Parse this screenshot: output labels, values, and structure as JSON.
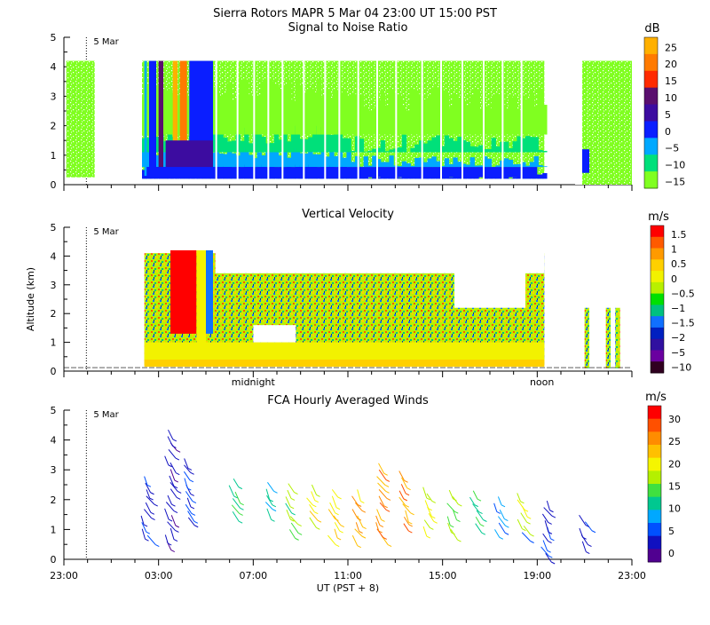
{
  "header": {
    "line1": "Sierra Rotors   MAPR   5 Mar 04   23:00 UT   15:00   PST"
  },
  "chart_data": [
    {
      "type": "heatmap",
      "title": "Signal to Noise Ratio",
      "date_label": "5 Mar",
      "y_ticks": [
        "0",
        "1",
        "2",
        "3",
        "4",
        "5"
      ],
      "ylim": [
        0,
        5
      ],
      "x_range_hours": [
        0,
        24
      ],
      "colorbar": {
        "unit": "dB",
        "labels": [
          "25",
          "20",
          "15",
          "10",
          "5",
          "0",
          "−5",
          "−10",
          "−15"
        ],
        "colors": [
          "#ffb000",
          "#ff7a00",
          "#ff2a00",
          "#5a0f6e",
          "#3c0ca0",
          "#0a1eff",
          "#00a8ff",
          "#00e07a",
          "#80ff20"
        ]
      }
    },
    {
      "type": "heatmap",
      "title": "Vertical Velocity",
      "ylabel": "Altitude (km)",
      "date_label": "5 Mar",
      "y_ticks": [
        "0",
        "1",
        "2",
        "3",
        "4",
        "5"
      ],
      "ylim": [
        0,
        5
      ],
      "x_annotations": [
        "midnight",
        "noon"
      ],
      "colorbar": {
        "unit": "m/s",
        "labels": [
          "1.5",
          "1",
          "0.5",
          "0",
          "−0.5",
          "−1",
          "−1.5",
          "−2",
          "−5",
          "−10"
        ],
        "colors": [
          "#ff0000",
          "#ff5a00",
          "#ff9a00",
          "#ffd000",
          "#f2f200",
          "#b8f000",
          "#00e000",
          "#00c080",
          "#1070ff",
          "#0020c0",
          "#3010a0",
          "#6a00a0",
          "#300020"
        ]
      }
    },
    {
      "type": "scatter",
      "title": "FCA Hourly Averaged Winds",
      "date_label": "5 Mar",
      "xlabel": "UT  (PST + 8)",
      "x_ticks": [
        "23:00",
        "03:00",
        "07:00",
        "11:00",
        "15:00",
        "19:00",
        "23:00"
      ],
      "y_ticks": [
        "0",
        "1",
        "2",
        "3",
        "4",
        "5"
      ],
      "ylim": [
        0,
        5
      ],
      "colorbar": {
        "unit": "m/s",
        "labels": [
          "30",
          "25",
          "20",
          "15",
          "10",
          "5",
          "0"
        ],
        "colors": [
          "#ff0000",
          "#ff5000",
          "#ff8c00",
          "#ffc000",
          "#f5f500",
          "#b4f000",
          "#40e040",
          "#00c890",
          "#00a8ff",
          "#0050ff",
          "#1010c0",
          "#500090"
        ]
      }
    }
  ]
}
